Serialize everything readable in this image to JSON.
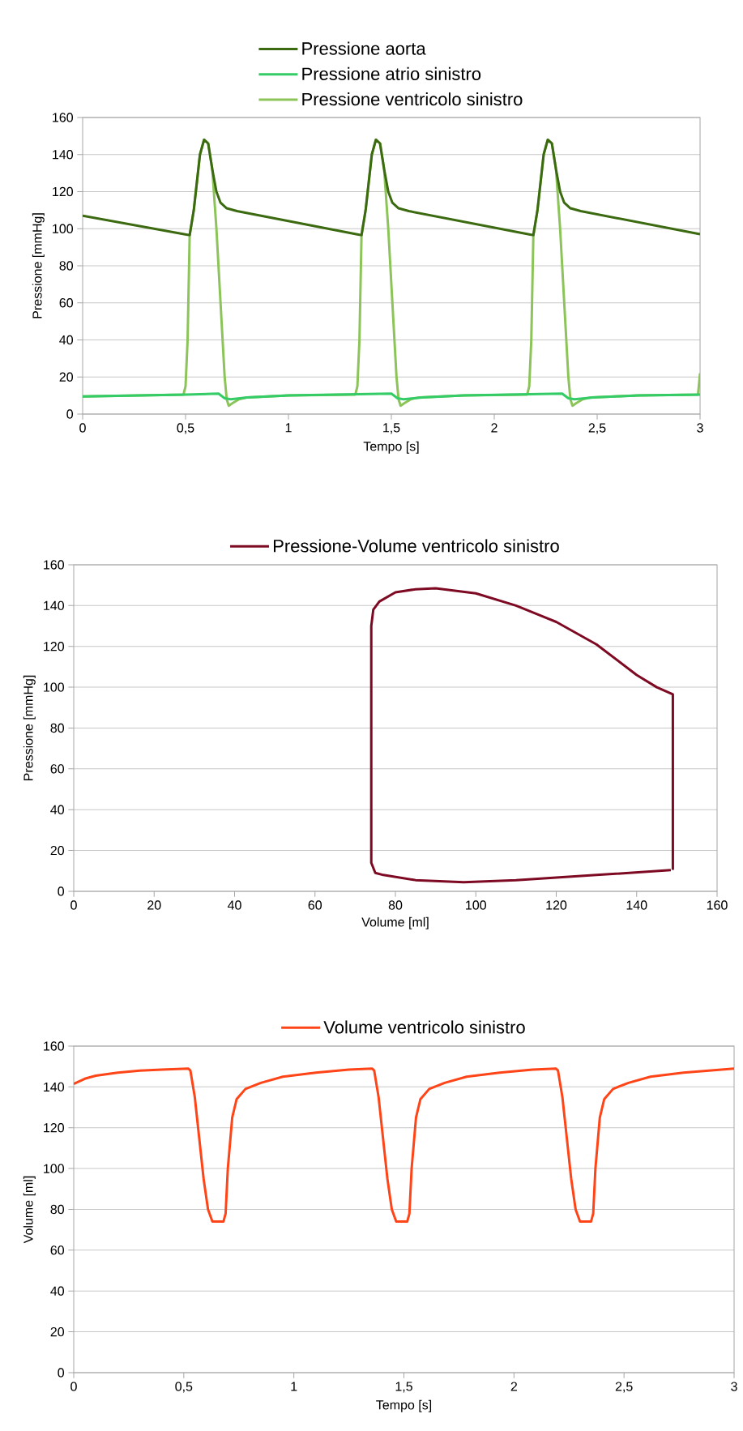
{
  "chart_data": [
    {
      "type": "line",
      "xlabel": "Tempo [s]",
      "ylabel": "Pressione [mmHg]",
      "xlim": [
        0,
        3
      ],
      "ylim": [
        0,
        160
      ],
      "grid": "y",
      "legend": "top",
      "marker": "none",
      "line_style": "solid",
      "xticks": [
        0,
        {
          "value": 0.5,
          "label": "0,5"
        },
        1,
        {
          "value": 1.5,
          "label": "1,5"
        },
        2,
        {
          "value": 2.5,
          "label": "2,5"
        },
        3
      ],
      "yticks": [
        0,
        20,
        40,
        60,
        80,
        100,
        120,
        140,
        160
      ],
      "series": [
        {
          "name": "Pressione aorta",
          "color": "#3b6a10",
          "x": [
            0,
            0.52,
            0.54,
            0.57,
            0.59,
            0.61,
            0.63,
            0.65,
            0.67,
            0.7,
            0.75,
            1.355,
            1.375,
            1.405,
            1.425,
            1.445,
            1.465,
            1.485,
            1.505,
            1.535,
            1.585,
            2.19,
            2.21,
            2.24,
            2.26,
            2.28,
            2.3,
            2.32,
            2.34,
            2.37,
            2.42,
            3
          ],
          "values": [
            107,
            96.5,
            110,
            140,
            148,
            146,
            132,
            120,
            114,
            111,
            109.5,
            96.5,
            110,
            140,
            148,
            146,
            132,
            120,
            114,
            111,
            109.5,
            96.5,
            110,
            140,
            148,
            146,
            132,
            120,
            114,
            111,
            109.5,
            97
          ]
        },
        {
          "name": "Pressione atrio sinistro",
          "color": "#33cc66",
          "x": [
            0,
            0.5,
            0.66,
            0.69,
            0.72,
            0.8,
            1,
            1.5,
            1.53,
            1.56,
            1.65,
            1.85,
            2.33,
            2.36,
            2.39,
            2.48,
            2.7,
            3
          ],
          "values": [
            9.5,
            10.5,
            11,
            8.5,
            8,
            9,
            10,
            11,
            8.5,
            8,
            9,
            10,
            11,
            8.5,
            8,
            9,
            10,
            10.5
          ]
        },
        {
          "name": "Pressione ventricolo sinistro",
          "color": "#8cc45a",
          "x": [
            0,
            0.49,
            0.5,
            0.51,
            0.52,
            0.54,
            0.57,
            0.59,
            0.61,
            0.63,
            0.65,
            0.67,
            0.69,
            0.7,
            0.71,
            0.73,
            0.76,
            0.8,
            1,
            1.325,
            1.335,
            1.345,
            1.355,
            1.375,
            1.405,
            1.425,
            1.445,
            1.465,
            1.485,
            1.505,
            1.525,
            1.535,
            1.545,
            1.565,
            1.595,
            1.635,
            1.85,
            2.16,
            2.17,
            2.18,
            2.19,
            2.21,
            2.24,
            2.26,
            2.28,
            2.3,
            2.32,
            2.34,
            2.36,
            2.37,
            2.38,
            2.4,
            2.43,
            2.47,
            2.7,
            2.99,
            3
          ],
          "values": [
            9.5,
            10.5,
            15,
            40,
            96.5,
            110,
            140,
            148,
            146,
            132,
            100,
            60,
            20,
            8,
            4.5,
            6,
            8,
            9,
            10,
            10.5,
            15,
            40,
            96.5,
            110,
            140,
            148,
            146,
            132,
            100,
            60,
            20,
            8,
            4.5,
            6,
            8,
            9,
            10,
            10.5,
            15,
            40,
            96.5,
            110,
            140,
            148,
            146,
            132,
            100,
            60,
            20,
            8,
            4.5,
            6,
            8,
            9,
            10,
            10.5,
            22
          ]
        }
      ]
    },
    {
      "type": "line",
      "xlabel": "Volume [ml]",
      "ylabel": "Pressione [mmHg]",
      "xlim": [
        0,
        160
      ],
      "ylim": [
        0,
        160
      ],
      "grid": "y",
      "legend": "top",
      "marker": "none",
      "line_style": "solid",
      "xticks": [
        0,
        20,
        40,
        60,
        80,
        100,
        120,
        140,
        160
      ],
      "yticks": [
        0,
        20,
        40,
        60,
        80,
        100,
        120,
        140,
        160
      ],
      "series": [
        {
          "name": "Pressione-Volume ventricolo sinistro",
          "color": "#7d0a22",
          "x": [
            149,
            149,
            145,
            140,
            130,
            120,
            110,
            100,
            90,
            85,
            80,
            76,
            74.5,
            74,
            74,
            75,
            77,
            85,
            97,
            110,
            130,
            148.5
          ],
          "values": [
            10.5,
            96.5,
            100,
            106,
            121,
            132,
            140,
            146,
            148.5,
            148,
            146.5,
            142,
            138,
            130,
            14,
            9,
            8,
            5.5,
            4.5,
            5.5,
            8,
            10.4
          ]
        }
      ]
    },
    {
      "type": "line",
      "xlabel": "Tempo [s]",
      "ylabel": "Volume [ml]",
      "xlim": [
        0,
        3
      ],
      "ylim": [
        0,
        160
      ],
      "grid": "y",
      "legend": "top",
      "marker": "none",
      "line_style": "solid",
      "xticks": [
        0,
        {
          "value": 0.5,
          "label": "0,5"
        },
        1,
        {
          "value": 1.5,
          "label": "1,5"
        },
        2,
        {
          "value": 2.5,
          "label": "2,5"
        },
        3
      ],
      "yticks": [
        0,
        20,
        40,
        60,
        80,
        100,
        120,
        140,
        160
      ],
      "series": [
        {
          "name": "Volume ventricolo sinistro",
          "color": "#ff4418",
          "x": [
            0,
            0.05,
            0.1,
            0.2,
            0.3,
            0.4,
            0.52,
            0.53,
            0.55,
            0.57,
            0.59,
            0.61,
            0.63,
            0.68,
            0.69,
            0.7,
            0.72,
            0.74,
            0.78,
            0.85,
            0.95,
            1.1,
            1.25,
            1.355,
            1.365,
            1.385,
            1.405,
            1.425,
            1.445,
            1.465,
            1.515,
            1.525,
            1.535,
            1.555,
            1.575,
            1.615,
            1.685,
            1.785,
            1.935,
            2.085,
            2.19,
            2.2,
            2.22,
            2.24,
            2.26,
            2.28,
            2.3,
            2.35,
            2.36,
            2.37,
            2.39,
            2.41,
            2.45,
            2.52,
            2.62,
            2.77,
            3
          ],
          "values": [
            141.5,
            144,
            145.5,
            147,
            148,
            148.5,
            149,
            148,
            135,
            115,
            95,
            80,
            74,
            74,
            78,
            100,
            125,
            134,
            139,
            142,
            145,
            147,
            148.5,
            149,
            148,
            135,
            115,
            95,
            80,
            74,
            74,
            78,
            100,
            125,
            134,
            139,
            142,
            145,
            147,
            148.5,
            149,
            148,
            135,
            115,
            95,
            80,
            74,
            74,
            78,
            100,
            125,
            134,
            139,
            142,
            145,
            147,
            149
          ]
        }
      ]
    }
  ]
}
